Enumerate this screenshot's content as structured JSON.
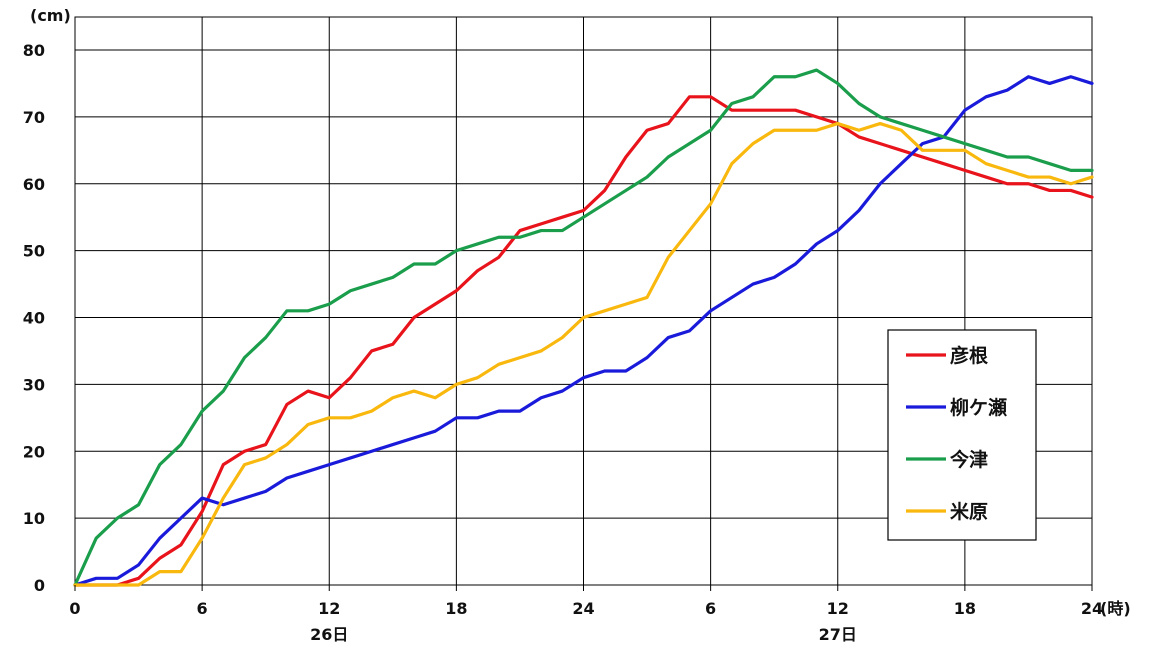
{
  "chart_data": {
    "type": "line",
    "y_unit": "(cm)",
    "x_unit": "(時)",
    "ylim": [
      0,
      80
    ],
    "y_ticks": [
      "0",
      "10",
      "20",
      "30",
      "40",
      "50",
      "60",
      "70",
      "80"
    ],
    "x_tick_labels": [
      "0",
      "6",
      "12",
      "18",
      "24",
      "6",
      "12",
      "18",
      "24"
    ],
    "day_labels": [
      "26日",
      "27日"
    ],
    "grid": true,
    "legend_position": "right",
    "series": [
      {
        "name": "彦根",
        "color": "#e8131b",
        "values": [
          0,
          0,
          0,
          1,
          4,
          6,
          11,
          18,
          20,
          21,
          27,
          29,
          28,
          31,
          35,
          36,
          40,
          42,
          44,
          47,
          49,
          53,
          54,
          55,
          56,
          59,
          64,
          68,
          69,
          73,
          73,
          71,
          71,
          71,
          71,
          70,
          69,
          67,
          66,
          65,
          64,
          63,
          62,
          61,
          60,
          60,
          59,
          59,
          58
        ]
      },
      {
        "name": "柳ケ瀬",
        "color": "#1a1adb",
        "values": [
          0,
          1,
          1,
          3,
          7,
          10,
          13,
          12,
          13,
          14,
          16,
          17,
          18,
          19,
          20,
          21,
          22,
          23,
          25,
          25,
          26,
          26,
          28,
          29,
          31,
          32,
          32,
          34,
          37,
          38,
          41,
          43,
          45,
          46,
          48,
          51,
          53,
          56,
          60,
          63,
          66,
          67,
          71,
          73,
          74,
          76,
          75,
          76,
          75
        ]
      },
      {
        "name": "今津",
        "color": "#1b9e4b",
        "values": [
          0,
          7,
          10,
          12,
          18,
          21,
          26,
          29,
          34,
          37,
          41,
          41,
          42,
          44,
          45,
          46,
          48,
          48,
          50,
          51,
          52,
          52,
          53,
          53,
          55,
          57,
          59,
          61,
          64,
          66,
          68,
          72,
          73,
          76,
          76,
          77,
          75,
          72,
          70,
          69,
          68,
          67,
          66,
          65,
          64,
          64,
          63,
          62,
          62
        ]
      },
      {
        "name": "米原",
        "color": "#f9b80e",
        "values": [
          0,
          0,
          0,
          0,
          2,
          2,
          7,
          13,
          18,
          19,
          21,
          24,
          25,
          25,
          26,
          28,
          29,
          28,
          30,
          31,
          33,
          34,
          35,
          37,
          40,
          41,
          42,
          43,
          49,
          53,
          57,
          63,
          66,
          68,
          68,
          68,
          69,
          68,
          69,
          68,
          65,
          65,
          65,
          63,
          62,
          61,
          61,
          60,
          61
        ]
      }
    ]
  }
}
